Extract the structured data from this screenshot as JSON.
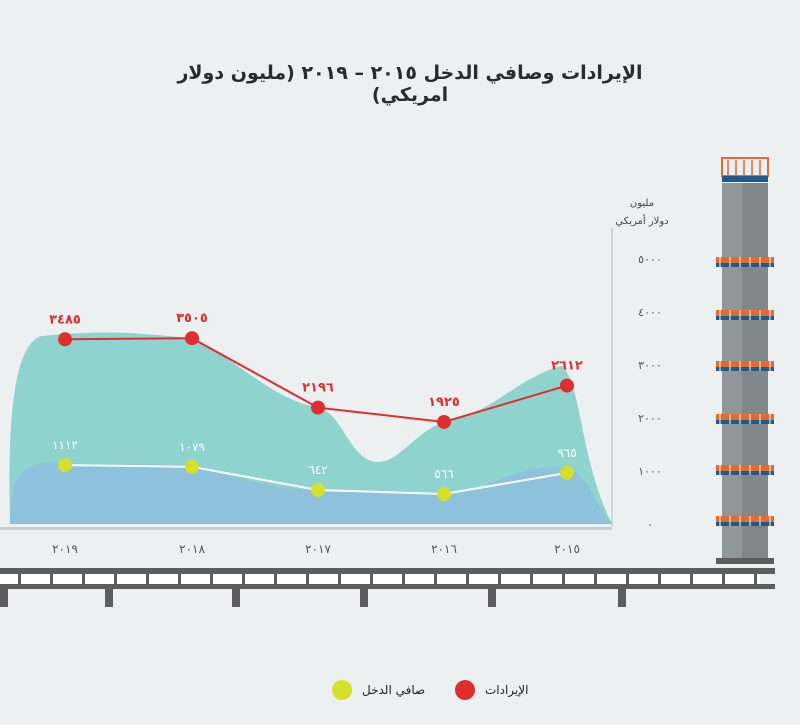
{
  "chart_data": {
    "type": "area",
    "title": "الإيرادات وصافي الدخل ٢٠١٥ – ٢٠١٩ (مليون دولار امريكي)",
    "ylabel_line1": "مليون",
    "ylabel_line2": "دولار أمريكي",
    "categories": [
      "٢٠١٩",
      "٢٠١٨",
      "٢٠١٧",
      "٢٠١٦",
      "٢٠١٥"
    ],
    "x_values": [
      2019,
      2018,
      2017,
      2016,
      2015
    ],
    "x_direction": "right-to-left",
    "ylim": [
      0,
      5000
    ],
    "yticks": [
      0,
      1000,
      2000,
      3000,
      4000,
      5000
    ],
    "ytick_labels": [
      "٠",
      "١٠٠٠",
      "٢٠٠٠",
      "٣٠٠٠",
      "٤٠٠٠",
      "٥٠٠٠"
    ],
    "grid": false,
    "legend_position": "bottom",
    "series": [
      {
        "name": "الإيرادات",
        "values": [
          3485,
          3505,
          2196,
          1925,
          2612
        ],
        "labels": [
          "٣٤٨٥",
          "٣٥٠٥",
          "٢١٩٦",
          "١٩٢٥",
          "٢٦١٢"
        ],
        "color": "#e02d2d",
        "area_color": "#8fd3cf",
        "label_color": "#e02d2d"
      },
      {
        "name": "صافي الدخل",
        "values": [
          1112,
          1079,
          642,
          566,
          965
        ],
        "labels": [
          "١١١٢",
          "١٠٧٩",
          "٦٤٢",
          "٥٦٦",
          "٩٦٥"
        ],
        "color": "#d6df2a",
        "area_color": "#8ec1db",
        "label_color": "#ffffff"
      }
    ]
  },
  "colors": {
    "background": "#ecf0f1",
    "girder": "#5d5d5d",
    "tower_body": "#8f9799",
    "tower_platform": "#e46b2f",
    "tower_rail": "#1f5a8a",
    "axis_text": "#555555"
  }
}
